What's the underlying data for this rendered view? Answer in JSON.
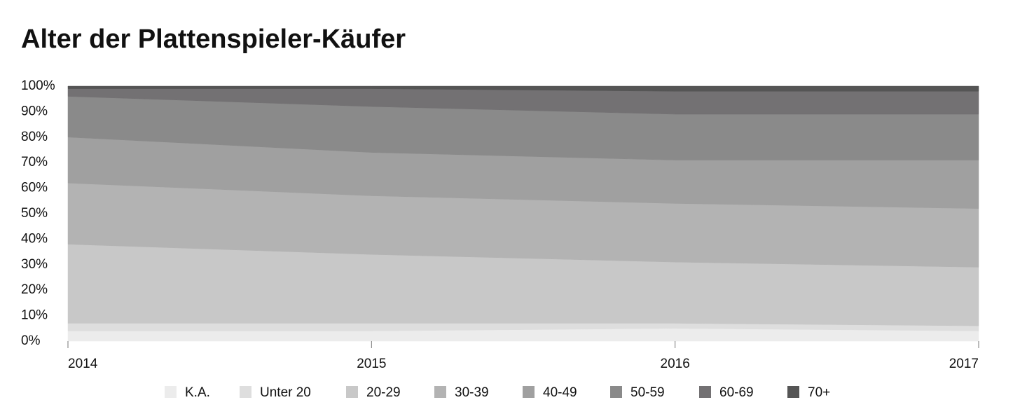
{
  "chart_data": {
    "type": "stacked-area",
    "title": "Alter der Plattenspieler-Käufer",
    "categories": [
      "2014",
      "2015",
      "2016",
      "2017"
    ],
    "ylim": [
      0,
      100
    ],
    "yticks": [
      {
        "value": 0,
        "label": "0%"
      },
      {
        "value": 10,
        "label": "10%"
      },
      {
        "value": 20,
        "label": "20%"
      },
      {
        "value": 30,
        "label": "30%"
      },
      {
        "value": 40,
        "label": "40%"
      },
      {
        "value": 50,
        "label": "50%"
      },
      {
        "value": 60,
        "label": "60%"
      },
      {
        "value": 70,
        "label": "70%"
      },
      {
        "value": 80,
        "label": "80%"
      },
      {
        "value": 90,
        "label": "90%"
      },
      {
        "value": 100,
        "label": "100%"
      }
    ],
    "grid": false,
    "legend": "bottom",
    "series": [
      {
        "name": "K.A.",
        "color": "#ececec",
        "values": [
          4,
          4,
          5,
          4
        ]
      },
      {
        "name": "Unter 20",
        "color": "#dedede",
        "values": [
          3,
          3,
          2,
          2
        ]
      },
      {
        "name": "20-29",
        "color": "#c8c8c8",
        "values": [
          31,
          27,
          24,
          23
        ]
      },
      {
        "name": "30-39",
        "color": "#b3b3b3",
        "values": [
          24,
          23,
          23,
          23
        ]
      },
      {
        "name": "40-49",
        "color": "#a0a0a0",
        "values": [
          18,
          17,
          17,
          19
        ]
      },
      {
        "name": "50-59",
        "color": "#8a8a8a",
        "values": [
          16,
          18,
          18,
          18
        ]
      },
      {
        "name": "60-69",
        "color": "#737173",
        "values": [
          3,
          7,
          9,
          9
        ]
      },
      {
        "name": "70+",
        "color": "#555555",
        "values": [
          1,
          1,
          2,
          2
        ]
      }
    ]
  }
}
